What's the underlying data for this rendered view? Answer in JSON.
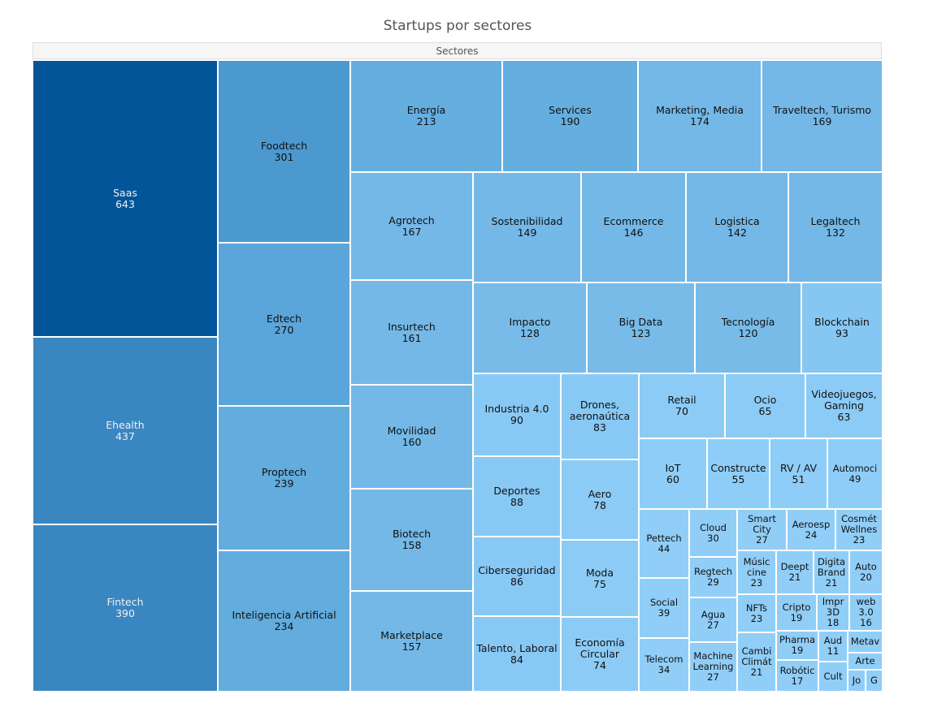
{
  "chart_data": {
    "type": "treemap",
    "title": "Startups por sectores",
    "root": "Sectores",
    "items": [
      {
        "label": "Saas",
        "value": 643,
        "color": "#03559a"
      },
      {
        "label": "Ehealth",
        "value": 437,
        "color": "#3a86c1"
      },
      {
        "label": "Fintech",
        "value": 390,
        "color": "#3a86c1"
      },
      {
        "label": "Foodtech",
        "value": 301,
        "color": "#4c99cf"
      },
      {
        "label": "Edtech",
        "value": 270,
        "color": "#5aa5d9"
      },
      {
        "label": "Proptech",
        "value": 239,
        "color": "#62acde"
      },
      {
        "label": "Inteligencia Artificial",
        "value": 234,
        "color": "#62acde"
      },
      {
        "label": "Energía",
        "value": 213,
        "color": "#65aee0"
      },
      {
        "label": "Services",
        "value": 190,
        "color": "#65aee0"
      },
      {
        "label": "Marketing, Media",
        "value": 174,
        "color": "#74b8e7"
      },
      {
        "label": "Traveltech, Turismo",
        "value": 169,
        "color": "#74b8e7"
      },
      {
        "label": "Agrotech",
        "value": 167,
        "color": "#74b8e7"
      },
      {
        "label": "Insurtech",
        "value": 161,
        "color": "#74b8e7"
      },
      {
        "label": "Movilidad",
        "value": 160,
        "color": "#74b8e7"
      },
      {
        "label": "Biotech",
        "value": 158,
        "color": "#74b8e7"
      },
      {
        "label": "Marketplace",
        "value": 157,
        "color": "#74b8e7"
      },
      {
        "label": "Sostenibilidad",
        "value": 149,
        "color": "#74b8e7"
      },
      {
        "label": "Ecommerce",
        "value": 146,
        "color": "#74b8e7"
      },
      {
        "label": "Logistica",
        "value": 142,
        "color": "#74b8e7"
      },
      {
        "label": "Legaltech",
        "value": 132,
        "color": "#74b8e7"
      },
      {
        "label": "Impacto",
        "value": 128,
        "color": "#78bbe9"
      },
      {
        "label": "Big Data",
        "value": 123,
        "color": "#78bbe9"
      },
      {
        "label": "Tecnología",
        "value": 120,
        "color": "#78bbe9"
      },
      {
        "label": "Blockchain",
        "value": 93,
        "color": "#86c6f2"
      },
      {
        "label": "Industria 4.0",
        "value": 90,
        "color": "#88c8f4"
      },
      {
        "label": "Drones,\naeronaútica",
        "value": 83,
        "color": "#88c8f4"
      },
      {
        "label": "Retail",
        "value": 70,
        "color": "#8ccbf6"
      },
      {
        "label": "Ocio",
        "value": 65,
        "color": "#8ccbf6"
      },
      {
        "label": "Videojuegos,\nGaming",
        "value": 63,
        "color": "#8ccbf6"
      },
      {
        "label": "Deportes",
        "value": 88,
        "color": "#88c8f4"
      },
      {
        "label": "Aero",
        "value": 78,
        "color": "#8ccbf6"
      },
      {
        "label": "IoT",
        "value": 60,
        "color": "#8ecdf7"
      },
      {
        "label": "Constructe",
        "value": 55,
        "color": "#8ecdf7"
      },
      {
        "label": "RV / AV",
        "value": 51,
        "color": "#8ecdf7"
      },
      {
        "label": "Automoci",
        "value": 49,
        "color": "#8ecdf7"
      },
      {
        "label": "Ciberseguridad",
        "value": 86,
        "color": "#88c8f4"
      },
      {
        "label": "Moda",
        "value": 75,
        "color": "#8ccbf6"
      },
      {
        "label": "Talento, Laboral",
        "value": 84,
        "color": "#88c8f4"
      },
      {
        "label": "Economía\nCircular",
        "value": 74,
        "color": "#8ccbf6"
      },
      {
        "label": "Pettech",
        "value": 44,
        "color": "#90cef8"
      },
      {
        "label": "Cloud",
        "value": 30,
        "color": "#90cef8"
      },
      {
        "label": "Smart\nCity",
        "value": 27,
        "color": "#90cef8"
      },
      {
        "label": "Aeroesp",
        "value": 24,
        "color": "#90cef8"
      },
      {
        "label": "Cosmét\nWellnes",
        "value": 23,
        "color": "#90cef8"
      },
      {
        "label": "Regtech",
        "value": 29,
        "color": "#90cef8"
      },
      {
        "label": "Músic\ncine",
        "value": 23,
        "color": "#90cef8"
      },
      {
        "label": "Deept",
        "value": 21,
        "color": "#90cef8"
      },
      {
        "label": "Digita\nBrand",
        "value": 21,
        "color": "#90cef8"
      },
      {
        "label": "Auto",
        "value": 20,
        "color": "#90cef8"
      },
      {
        "label": "Social",
        "value": 39,
        "color": "#90cef8"
      },
      {
        "label": "Agua",
        "value": 27,
        "color": "#90cef8"
      },
      {
        "label": "NFTs",
        "value": 23,
        "color": "#90cef8"
      },
      {
        "label": "Cripto",
        "value": 19,
        "color": "#90cef8"
      },
      {
        "label": "Impr\n3D",
        "value": 18,
        "color": "#90cef8"
      },
      {
        "label": "web\n3.0",
        "value": 16,
        "color": "#90cef8"
      },
      {
        "label": "Pharma",
        "value": 19,
        "color": "#90cef8"
      },
      {
        "label": "Aud",
        "value": 11,
        "color": "#90cef8"
      },
      {
        "label": "Metav",
        "value": "",
        "color": "#90cef8"
      },
      {
        "label": "Arte",
        "value": "",
        "color": "#90cef8"
      },
      {
        "label": "Telecom",
        "value": 34,
        "color": "#90cef8"
      },
      {
        "label": "Machine\nLearning",
        "value": 27,
        "color": "#90cef8"
      },
      {
        "label": "Cambi\nClimát",
        "value": 21,
        "color": "#90cef8"
      },
      {
        "label": "Robótic",
        "value": 17,
        "color": "#90cef8"
      },
      {
        "label": "Cult",
        "value": "",
        "color": "#90cef8"
      },
      {
        "label": "Jo",
        "value": "",
        "color": "#90cef8"
      },
      {
        "label": "G",
        "value": "",
        "color": "#90cef8"
      }
    ]
  }
}
